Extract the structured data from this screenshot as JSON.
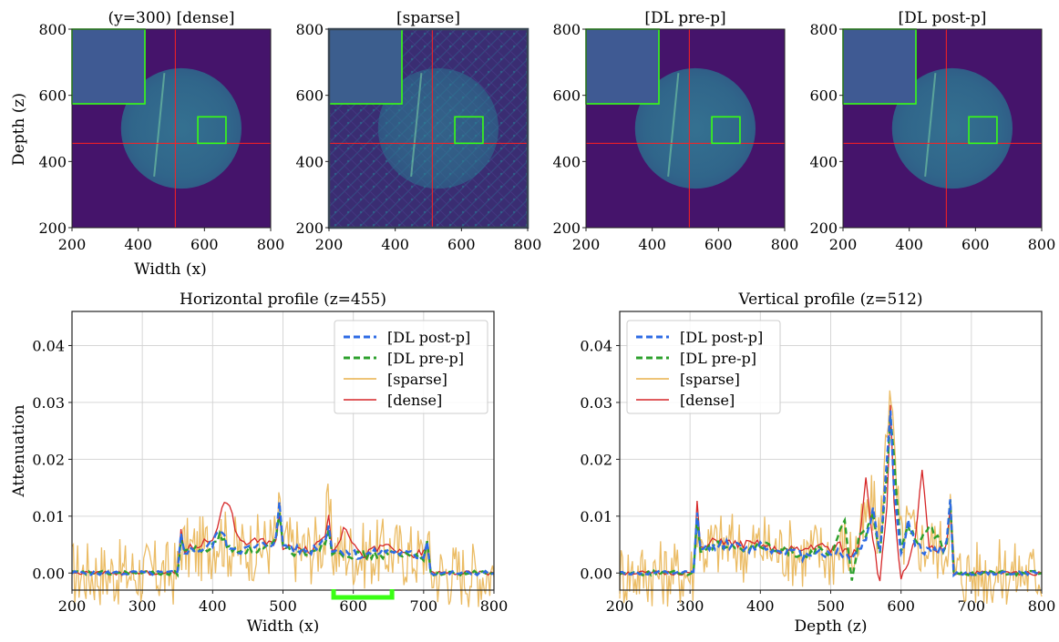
{
  "colors": {
    "dense": "#d62728",
    "sparse": "#e8b04a",
    "dl_pre": "#2ca02c",
    "dl_post": "#2d6be4",
    "image_bg": "#45146b",
    "disk": "#2c8b9a",
    "roi": "#39ff14",
    "crosshair": "#ff2020",
    "sparse_frame": "#384654"
  },
  "image_panels": {
    "ylabel": "Depth (z)",
    "xlabel": "Width (x)",
    "ticks": [
      "200",
      "400",
      "600",
      "800"
    ],
    "tick_values": [
      200,
      400,
      600,
      800
    ],
    "range": [
      200,
      800
    ],
    "roi_box": {
      "x": [
        580,
        665
      ],
      "z": [
        455,
        535
      ]
    },
    "inset_note": "zoom of green ROI shown in upper-left inset",
    "crosshair": {
      "x": 512,
      "z": 455
    },
    "disk": {
      "cx": 530,
      "cz": 500,
      "r": 182
    },
    "titles": [
      "(y=300) [dense]",
      "[sparse]",
      "[DL pre-p]",
      "[DL post-p]"
    ]
  },
  "chart_data": [
    {
      "type": "line",
      "title": "Horizontal profile (z=455)",
      "xlabel": "Width (x)",
      "ylabel": "Attenuation",
      "xlim": [
        200,
        800
      ],
      "ylim": [
        -0.003,
        0.046
      ],
      "xticks": [
        200,
        300,
        400,
        500,
        600,
        700,
        800
      ],
      "yticks": [
        0.0,
        0.01,
        0.02,
        0.03,
        0.04
      ],
      "xtick_labels": [
        "200",
        "300",
        "400",
        "500",
        "600",
        "700",
        "800"
      ],
      "ytick_labels": [
        "0.00",
        "0.01",
        "0.02",
        "0.03",
        "0.04"
      ],
      "grid": true,
      "legend_position": "top-right",
      "roi_marker": [
        572,
        655
      ],
      "series": [
        {
          "name": "[DL post-p]",
          "key": "dl_post",
          "style": "dashed",
          "x": [
            200,
            350,
            355,
            360,
            380,
            400,
            410,
            420,
            440,
            460,
            480,
            490,
            495,
            500,
            520,
            540,
            560,
            565,
            570,
            590,
            610,
            630,
            650,
            670,
            690,
            700,
            705,
            710,
            760,
            800
          ],
          "y": [
            0.0,
            0.0,
            0.007,
            0.004,
            0.004,
            0.005,
            0.008,
            0.005,
            0.004,
            0.0045,
            0.005,
            0.006,
            0.012,
            0.005,
            0.004,
            0.004,
            0.006,
            0.009,
            0.004,
            0.004,
            0.003,
            0.0035,
            0.004,
            0.0035,
            0.003,
            0.003,
            0.006,
            0.0,
            0.0,
            0.0
          ]
        },
        {
          "name": "[DL pre-p]",
          "key": "dl_pre",
          "style": "dashed",
          "x": [
            200,
            350,
            355,
            360,
            380,
            400,
            410,
            420,
            440,
            460,
            480,
            490,
            495,
            500,
            520,
            540,
            560,
            565,
            570,
            590,
            610,
            630,
            650,
            670,
            690,
            700,
            705,
            710,
            760,
            800
          ],
          "y": [
            0.0,
            0.0,
            0.006,
            0.004,
            0.004,
            0.0045,
            0.007,
            0.0045,
            0.004,
            0.004,
            0.0045,
            0.0055,
            0.01,
            0.0045,
            0.0035,
            0.004,
            0.005,
            0.008,
            0.004,
            0.0035,
            0.003,
            0.003,
            0.0035,
            0.003,
            0.003,
            0.003,
            0.005,
            0.0,
            0.0,
            0.0
          ]
        },
        {
          "name": "[sparse]",
          "key": "sparse",
          "style": "solid",
          "noise": true,
          "x": [
            200,
            350,
            355,
            360,
            380,
            400,
            410,
            420,
            440,
            460,
            480,
            490,
            495,
            500,
            520,
            540,
            560,
            565,
            570,
            590,
            610,
            630,
            650,
            670,
            690,
            700,
            705,
            710,
            760,
            800
          ],
          "y": [
            0.0,
            0.0,
            0.006,
            0.004,
            0.004,
            0.005,
            0.007,
            0.005,
            0.004,
            0.0045,
            0.005,
            0.006,
            0.01,
            0.005,
            0.004,
            0.004,
            0.006,
            0.012,
            0.004,
            0.004,
            0.003,
            0.0035,
            0.004,
            0.0035,
            0.003,
            0.003,
            0.006,
            0.0,
            0.0,
            0.0
          ]
        },
        {
          "name": "[dense]",
          "key": "dense",
          "style": "solid",
          "x": [
            200,
            350,
            355,
            360,
            380,
            400,
            410,
            420,
            440,
            460,
            480,
            490,
            495,
            500,
            520,
            540,
            560,
            565,
            570,
            590,
            610,
            630,
            650,
            670,
            690,
            700,
            705,
            710,
            760,
            800
          ],
          "y": [
            0.0,
            0.0,
            0.008,
            0.004,
            0.005,
            0.006,
            0.01,
            0.013,
            0.005,
            0.006,
            0.005,
            0.006,
            0.011,
            0.004,
            0.005,
            0.004,
            0.007,
            0.01,
            0.004,
            0.008,
            0.003,
            0.004,
            0.005,
            0.003,
            0.003,
            0.004,
            0.005,
            0.0,
            0.0,
            0.0
          ]
        }
      ]
    },
    {
      "type": "line",
      "title": "Vertical profile (z=512)",
      "xlabel": "Depth (z)",
      "ylabel": "",
      "xlim": [
        200,
        800
      ],
      "ylim": [
        -0.003,
        0.046
      ],
      "xticks": [
        200,
        300,
        400,
        500,
        600,
        700,
        800
      ],
      "yticks": [
        0.0,
        0.01,
        0.02,
        0.03,
        0.04
      ],
      "xtick_labels": [
        "200",
        "300",
        "400",
        "500",
        "600",
        "700",
        "800"
      ],
      "ytick_labels": [
        "0.00",
        "0.01",
        "0.02",
        "0.03",
        "0.04"
      ],
      "grid": true,
      "legend_position": "top-left",
      "series": [
        {
          "name": "[DL post-p]",
          "key": "dl_post",
          "style": "dashed",
          "x": [
            200,
            305,
            310,
            315,
            340,
            360,
            380,
            400,
            420,
            440,
            460,
            480,
            500,
            510,
            520,
            530,
            540,
            550,
            560,
            570,
            580,
            585,
            590,
            600,
            610,
            620,
            630,
            640,
            660,
            665,
            670,
            675,
            700,
            800
          ],
          "y": [
            0.0,
            0.0,
            0.011,
            0.004,
            0.005,
            0.005,
            0.004,
            0.005,
            0.004,
            0.004,
            0.003,
            0.004,
            0.003,
            0.004,
            0.003,
            0.003,
            0.004,
            0.006,
            0.011,
            0.004,
            0.02,
            0.029,
            0.015,
            0.003,
            0.009,
            0.005,
            0.004,
            0.004,
            0.004,
            0.005,
            0.013,
            0.0,
            0.0,
            0.0
          ]
        },
        {
          "name": "[DL pre-p]",
          "key": "dl_pre",
          "style": "dashed",
          "x": [
            200,
            305,
            310,
            315,
            340,
            360,
            380,
            400,
            420,
            440,
            460,
            480,
            500,
            510,
            520,
            530,
            540,
            550,
            560,
            570,
            580,
            585,
            590,
            600,
            610,
            620,
            630,
            640,
            660,
            665,
            670,
            675,
            700,
            800
          ],
          "y": [
            0.0,
            0.0,
            0.01,
            0.004,
            0.005,
            0.005,
            0.004,
            0.005,
            0.004,
            0.004,
            0.003,
            0.004,
            0.003,
            0.006,
            0.009,
            -0.001,
            0.006,
            0.007,
            0.01,
            0.004,
            0.018,
            0.028,
            0.02,
            0.004,
            0.008,
            0.006,
            0.006,
            0.009,
            0.004,
            0.005,
            0.013,
            0.0,
            0.0,
            0.0
          ]
        },
        {
          "name": "[sparse]",
          "key": "sparse",
          "style": "solid",
          "noise": true,
          "x": [
            200,
            305,
            310,
            315,
            340,
            360,
            380,
            400,
            420,
            440,
            460,
            480,
            500,
            510,
            520,
            530,
            540,
            550,
            560,
            570,
            580,
            585,
            590,
            600,
            610,
            620,
            630,
            640,
            660,
            665,
            670,
            675,
            700,
            800
          ],
          "y": [
            0.0,
            0.0,
            0.01,
            0.004,
            0.005,
            0.005,
            0.004,
            0.005,
            0.004,
            0.004,
            0.003,
            0.004,
            0.003,
            0.004,
            0.005,
            0.003,
            0.005,
            0.009,
            0.012,
            0.006,
            0.025,
            0.037,
            0.02,
            0.005,
            0.008,
            0.006,
            0.005,
            0.005,
            0.004,
            0.005,
            0.012,
            0.0,
            0.0,
            0.0
          ]
        },
        {
          "name": "[dense]",
          "key": "dense",
          "style": "solid",
          "x": [
            200,
            305,
            310,
            315,
            340,
            360,
            380,
            400,
            420,
            440,
            460,
            480,
            500,
            510,
            520,
            530,
            540,
            550,
            560,
            570,
            580,
            585,
            590,
            600,
            610,
            620,
            630,
            640,
            660,
            665,
            670,
            675,
            700,
            800
          ],
          "y": [
            0.0,
            0.0,
            0.013,
            0.004,
            0.006,
            0.005,
            0.005,
            0.005,
            0.004,
            0.004,
            0.004,
            0.005,
            0.004,
            0.005,
            0.004,
            0.003,
            0.005,
            0.017,
            0.006,
            -0.002,
            0.012,
            0.03,
            0.012,
            -0.001,
            0.001,
            0.006,
            0.018,
            0.004,
            0.004,
            0.005,
            0.012,
            0.0,
            0.0,
            0.0
          ]
        }
      ]
    }
  ]
}
